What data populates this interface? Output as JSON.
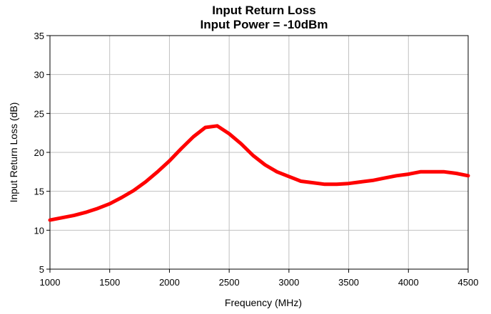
{
  "chart_data": {
    "type": "line",
    "title": "Input Return Loss",
    "subtitle": "Input Power = -10dBm",
    "xlabel": "Frequency (MHz)",
    "ylabel": "Input Return Loss (dB)",
    "xlim": [
      1000,
      4500
    ],
    "ylim": [
      5,
      35
    ],
    "xticks": [
      "1000",
      "1500",
      "2000",
      "2500",
      "3000",
      "3500",
      "4000",
      "4500"
    ],
    "yticks": [
      "5",
      "10",
      "15",
      "20",
      "25",
      "30",
      "35"
    ],
    "grid": true,
    "series": [
      {
        "color": "#ff0000",
        "x": [
          1000,
          1100,
          1200,
          1300,
          1400,
          1500,
          1600,
          1700,
          1800,
          1900,
          2000,
          2100,
          2200,
          2300,
          2400,
          2500,
          2600,
          2700,
          2800,
          2900,
          3000,
          3100,
          3200,
          3300,
          3400,
          3500,
          3600,
          3700,
          3800,
          3900,
          4000,
          4100,
          4200,
          4300,
          4400,
          4500
        ],
        "y": [
          11.3,
          11.6,
          11.9,
          12.3,
          12.8,
          13.4,
          14.2,
          15.1,
          16.2,
          17.5,
          18.9,
          20.5,
          22.0,
          23.2,
          23.4,
          22.4,
          21.1,
          19.6,
          18.4,
          17.5,
          16.9,
          16.3,
          16.1,
          15.9,
          15.9,
          16.0,
          16.2,
          16.4,
          16.7,
          17.0,
          17.2,
          17.5,
          17.5,
          17.5,
          17.3,
          17.0
        ]
      }
    ]
  }
}
